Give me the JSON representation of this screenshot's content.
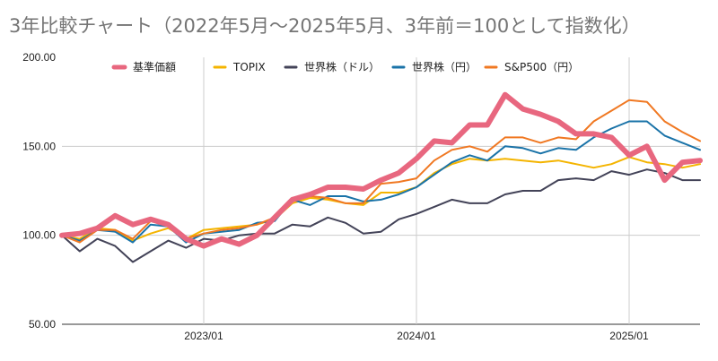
{
  "chart_data": {
    "type": "line",
    "title": "3年比較チャート（2022年5月〜2025年5月、3年前＝100として指数化）",
    "xlabel": "",
    "ylabel": "",
    "x": [
      "2022/05",
      "2022/06",
      "2022/07",
      "2022/08",
      "2022/09",
      "2022/10",
      "2022/11",
      "2022/12",
      "2023/01",
      "2023/02",
      "2023/03",
      "2023/04",
      "2023/05",
      "2023/06",
      "2023/07",
      "2023/08",
      "2023/09",
      "2023/10",
      "2023/11",
      "2023/12",
      "2024/01",
      "2024/02",
      "2024/03",
      "2024/04",
      "2024/05",
      "2024/06",
      "2024/07",
      "2024/08",
      "2024/09",
      "2024/10",
      "2024/11",
      "2024/12",
      "2025/01",
      "2025/02",
      "2025/03",
      "2025/04",
      "2025/05"
    ],
    "x_tick_labels": [
      "2023/01",
      "2024/01",
      "2025/01"
    ],
    "x_tick_indices": [
      8,
      20,
      32
    ],
    "y_ticks": [
      50,
      100,
      150
    ],
    "y_tick_labels": [
      "50.00",
      "100.00",
      "150.00"
    ],
    "ylim": [
      50,
      200
    ],
    "top_label": "200.00",
    "grid": true,
    "legend_position": "top",
    "series": [
      {
        "name": "基準価額",
        "color": "#e8677f",
        "width": 6,
        "values": [
          100,
          101,
          104,
          111,
          106,
          109,
          106,
          98,
          94,
          98,
          95,
          100,
          110,
          120,
          123,
          127,
          127,
          126,
          131,
          135,
          143,
          153,
          152,
          162,
          162,
          179,
          171,
          168,
          164,
          157,
          157,
          155,
          145,
          150,
          131,
          141,
          142
        ]
      },
      {
        "name": "TOPIX",
        "color": "#f4b400",
        "width": 2,
        "values": [
          100,
          98,
          104,
          103,
          97,
          101,
          104,
          98,
          103,
          104,
          105,
          106,
          109,
          118,
          121,
          120,
          118,
          117,
          124,
          124,
          127,
          135,
          140,
          143,
          142,
          143,
          142,
          141,
          142,
          140,
          138,
          140,
          144,
          141,
          140,
          138,
          140
        ]
      },
      {
        "name": "世界株（ドル）",
        "color": "#434358",
        "width": 2,
        "values": [
          100,
          91,
          98,
          94,
          85,
          91,
          97,
          93,
          98,
          97,
          100,
          101,
          101,
          106,
          105,
          110,
          107,
          101,
          102,
          109,
          112,
          116,
          120,
          118,
          118,
          123,
          125,
          125,
          131,
          132,
          131,
          136,
          134,
          137,
          135,
          131,
          131
        ]
      },
      {
        "name": "世界株（円）",
        "color": "#1a73a8",
        "width": 2,
        "values": [
          100,
          97,
          103,
          102,
          96,
          106,
          105,
          96,
          101,
          102,
          103,
          107,
          108,
          120,
          117,
          122,
          122,
          119,
          120,
          123,
          127,
          134,
          141,
          145,
          142,
          150,
          149,
          146,
          149,
          148,
          155,
          160,
          164,
          164,
          156,
          152,
          148
        ]
      },
      {
        "name": "S&P500（円）",
        "color": "#f07822",
        "width": 2,
        "values": [
          100,
          96,
          103,
          103,
          98,
          108,
          106,
          98,
          101,
          103,
          104,
          106,
          110,
          121,
          122,
          121,
          118,
          118,
          129,
          130,
          132,
          142,
          148,
          150,
          147,
          155,
          155,
          152,
          155,
          154,
          164,
          170,
          176,
          175,
          164,
          158,
          153
        ]
      }
    ]
  }
}
